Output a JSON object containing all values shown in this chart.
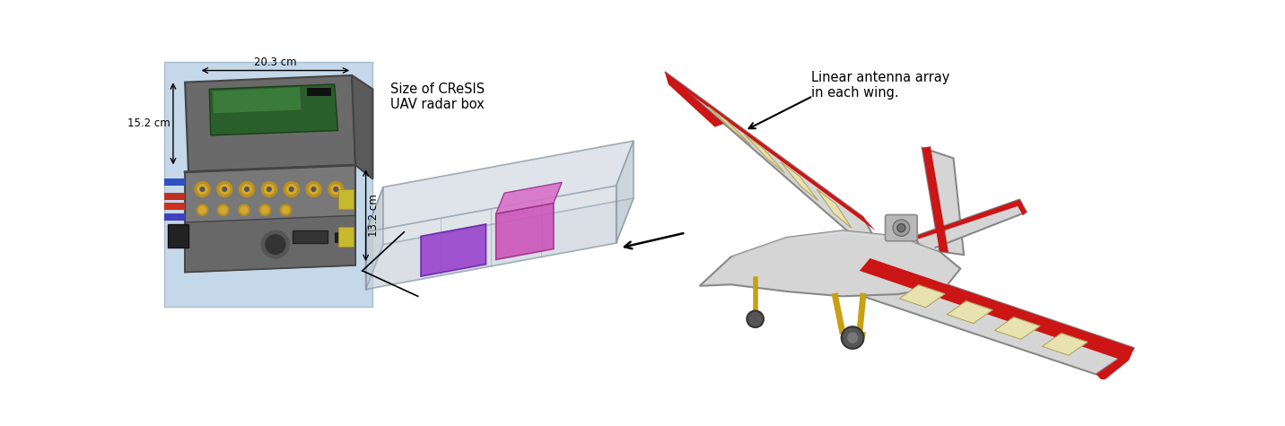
{
  "radar_box_label": "Size of CReSIS\nUAV radar box",
  "antenna_label": "Linear antenna array\nin each wing.",
  "dim_width": "20.3 cm",
  "dim_depth": "15.2 cm",
  "dim_height": "13.2 cm",
  "bg_color": "#ffffff",
  "radar_photo_bg": "#c5d8ea",
  "annotation_color": "#000000",
  "label_fontsize": 10.5,
  "dim_fontsize": 8.5,
  "fig_width": 14.32,
  "fig_height": 4.75
}
